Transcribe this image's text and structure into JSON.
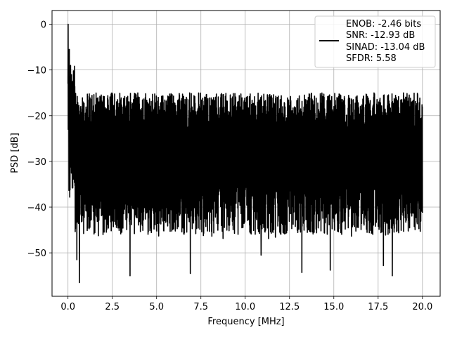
{
  "chart_data": {
    "type": "line",
    "xlabel": "Frequency [MHz]",
    "ylabel": "PSD [dB]",
    "xlim": [
      -0.9,
      21.0
    ],
    "ylim": [
      -59.5,
      3.0
    ],
    "xticks": [
      0.0,
      2.5,
      5.0,
      7.5,
      10.0,
      12.5,
      15.0,
      17.5,
      20.0
    ],
    "xtick_labels": [
      "0.0",
      "2.5",
      "5.0",
      "7.5",
      "10.0",
      "12.5",
      "15.0",
      "17.5",
      "20.0"
    ],
    "yticks": [
      0,
      -10,
      -20,
      -30,
      -40,
      -50
    ],
    "ytick_labels": [
      "0",
      "−10",
      "−20",
      "−30",
      "−40",
      "−50"
    ],
    "grid": true,
    "legend_position": "top-right",
    "series": [
      {
        "color": "#000000",
        "x_range": [
          0.0,
          20.0
        ],
        "peaks": [
          {
            "x": 0.0,
            "y": 0.0
          },
          {
            "x": 0.08,
            "y": -5.5
          },
          {
            "x": 0.15,
            "y": -9.0
          },
          {
            "x": 0.5,
            "y": -51.5
          },
          {
            "x": 0.65,
            "y": -56.5
          },
          {
            "x": 3.5,
            "y": -55.0
          },
          {
            "x": 6.9,
            "y": -54.5
          },
          {
            "x": 10.9,
            "y": -50.5
          },
          {
            "x": 13.2,
            "y": -54.3
          },
          {
            "x": 14.8,
            "y": -53.8
          },
          {
            "x": 18.3,
            "y": -55.0
          },
          {
            "x": 17.8,
            "y": -52.8
          }
        ],
        "noise_floor_top_db": -15.0,
        "noise_floor_center_db": -28.0,
        "noise_floor_bottom_db": -47.0
      }
    ],
    "legend": {
      "lines": [
        "ENOB: -2.46 bits",
        "SNR: -12.93 dB",
        "SINAD: -13.04 dB",
        "SFDR: 5.58"
      ]
    }
  }
}
